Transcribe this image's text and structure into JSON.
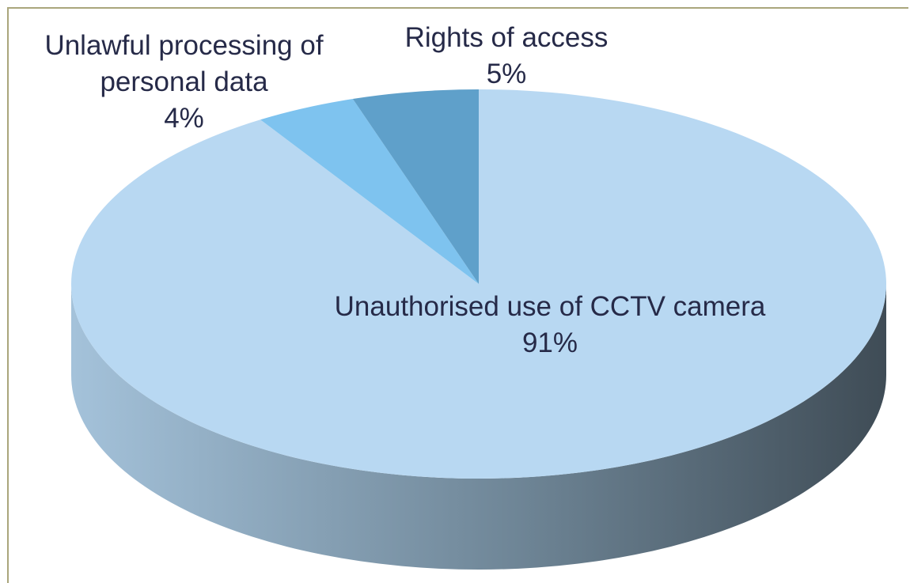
{
  "chart_data": {
    "type": "pie",
    "three_d": true,
    "categories": [
      "Unauthorised use of CCTV camera",
      "Unlawful processing of personal data",
      "Rights of access"
    ],
    "values": [
      91,
      4,
      5
    ],
    "value_labels": [
      "91%",
      "4%",
      "5%"
    ],
    "colors": [
      "#b8d8f2",
      "#7ec3ef",
      "#5fa0ca"
    ]
  }
}
